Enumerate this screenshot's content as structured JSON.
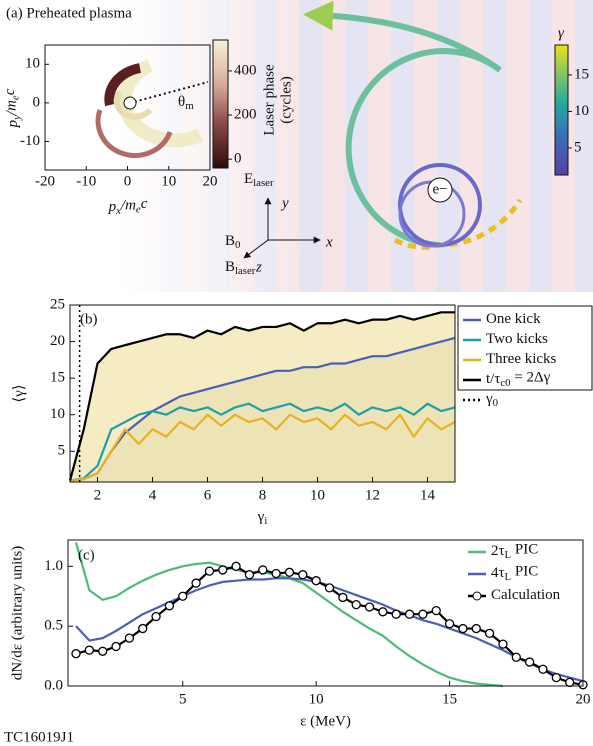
{
  "panel_a": {
    "label": "(a) Preheated plasma",
    "inset": {
      "xlabel": [
        "p",
        "x",
        "/m",
        "e",
        "c"
      ],
      "ylabel": [
        "p",
        "y",
        "/m",
        "e",
        "c"
      ],
      "xlim": [
        -20,
        20
      ],
      "ylim": [
        -17.4,
        15
      ],
      "xticks": [
        -20,
        -10,
        0,
        10,
        20
      ],
      "yticks": [
        -10,
        0,
        10
      ],
      "angle_label": [
        "θ",
        "m"
      ],
      "colorbar": {
        "label_lines": [
          "Laser phase",
          "(cycles)"
        ],
        "lim": [
          -40,
          540
        ],
        "ticks": [
          0,
          200,
          400
        ]
      }
    },
    "trajectory": {
      "particle_label": "e−",
      "colorbar": {
        "label": "γ",
        "lim": [
          1.3,
          19.1
        ],
        "ticks": [
          5,
          10,
          15
        ]
      }
    },
    "axes": {
      "E": [
        "E",
        "laser"
      ],
      "y": "y",
      "x": "x",
      "z": "z",
      "B0": [
        "B",
        "0"
      ],
      "Blaser": [
        "B",
        "laser"
      ]
    }
  },
  "chart_data": [
    {
      "type": "line",
      "panel_label": "(b)",
      "xlabel": [
        "γ",
        "i"
      ],
      "ylabel": "⟨γ⟩",
      "xlim": [
        1,
        15
      ],
      "ylim": [
        0.8,
        25
      ],
      "xticks": [
        2,
        4,
        6,
        8,
        10,
        12,
        14
      ],
      "yticks": [
        5,
        10,
        15,
        20,
        25
      ],
      "legend": "right-outside",
      "x": [
        1,
        1.5,
        2,
        2.5,
        3,
        3.5,
        4,
        4.5,
        5,
        5.5,
        6,
        6.5,
        7,
        7.5,
        8,
        8.5,
        9,
        9.5,
        10,
        10.5,
        11,
        11.5,
        12,
        12.5,
        13,
        13.5,
        14,
        14.5,
        15
      ],
      "series": [
        {
          "name": [
            "One kick"
          ],
          "color": "#4a5fb5",
          "fill": "#c9d2b4",
          "values": [
            1,
            1.2,
            2,
            5,
            7.5,
            9,
            10.5,
            11.5,
            12.5,
            13,
            13.5,
            14,
            14.5,
            15,
            15.5,
            16,
            16,
            16.5,
            16.5,
            17,
            17,
            17.5,
            18,
            18,
            18.5,
            19,
            19.5,
            20,
            20.5
          ]
        },
        {
          "name": [
            "Two kicks"
          ],
          "color": "#1b9fa8",
          "values": [
            1,
            1.3,
            3,
            8,
            9,
            10,
            10.5,
            10,
            11,
            10.5,
            11,
            10,
            11,
            11.5,
            10.5,
            11,
            11.5,
            10.5,
            11,
            10.5,
            11.5,
            10,
            11,
            10.5,
            11,
            10,
            11.5,
            10.5,
            11
          ]
        },
        {
          "name": [
            "Three kicks"
          ],
          "color": "#e6b124",
          "values": [
            1,
            1.2,
            2,
            5,
            8,
            6,
            8,
            7,
            9,
            8,
            10,
            8.5,
            10,
            9,
            9.5,
            8,
            10,
            9,
            9.5,
            8,
            10,
            8.5,
            9,
            8,
            10,
            7,
            9.5,
            8,
            9
          ]
        },
        {
          "name": [
            "t/τ",
            "c0",
            " = 2Δγ"
          ],
          "color": "#000000",
          "fill": "#f3e6b0",
          "values": [
            1,
            8,
            17,
            19,
            19.5,
            20,
            20.5,
            21,
            21,
            20.5,
            21.5,
            21,
            22,
            21.5,
            22,
            22,
            22.5,
            21.5,
            22.5,
            22.5,
            23,
            22.5,
            23,
            23,
            23.5,
            23,
            23.5,
            24,
            24
          ]
        },
        {
          "name": [
            "γ",
            "0"
          ],
          "color": "#000000",
          "dash": "dotted",
          "x_value": 1.35
        }
      ]
    },
    {
      "type": "line",
      "panel_label": "(c)",
      "xlabel": "ε (MeV)",
      "ylabel": "dN/dε (arbitrary units)",
      "xlim": [
        0.7,
        20
      ],
      "ylim": [
        0,
        1.22
      ],
      "xticks": [
        5,
        10,
        15,
        20
      ],
      "yticks": [
        {
          "value": 0,
          "label": "0.0"
        },
        {
          "value": 0.5,
          "label": "0.5"
        },
        {
          "value": 1,
          "label": "1.0"
        }
      ],
      "legend": "upper right",
      "x": [
        1,
        1.5,
        2,
        2.5,
        3,
        3.5,
        4,
        4.5,
        5,
        5.5,
        6,
        6.5,
        7,
        7.5,
        8,
        8.5,
        9,
        9.5,
        10,
        10.5,
        11,
        11.5,
        12,
        12.5,
        13,
        13.5,
        14,
        14.5,
        15,
        15.5,
        16,
        16.5,
        17,
        17.5,
        18,
        18.5,
        19,
        19.5,
        20
      ],
      "series": [
        {
          "name": [
            "2τ",
            "L",
            " PIC"
          ],
          "color": "#4cbb78",
          "values": [
            1.2,
            0.8,
            0.72,
            0.75,
            0.82,
            0.88,
            0.93,
            0.97,
            1.0,
            1.02,
            1.03,
            1.0,
            0.97,
            0.95,
            0.95,
            0.93,
            0.9,
            0.86,
            0.78,
            0.7,
            0.62,
            0.55,
            0.48,
            0.42,
            0.33,
            0.25,
            0.18,
            0.12,
            0.07,
            0.04,
            0.02,
            0.01,
            0,
            null,
            null,
            null,
            null,
            null,
            null
          ]
        },
        {
          "name": [
            "4τ",
            "L",
            " PIC"
          ],
          "color": "#4a5fb5",
          "values": [
            0.5,
            0.38,
            0.4,
            0.46,
            0.53,
            0.6,
            0.65,
            0.7,
            0.75,
            0.8,
            0.84,
            0.87,
            0.88,
            0.89,
            0.89,
            0.9,
            0.9,
            0.89,
            0.87,
            0.84,
            0.8,
            0.76,
            0.72,
            0.68,
            0.63,
            0.59,
            0.55,
            0.52,
            0.48,
            0.44,
            0.4,
            0.35,
            0.3,
            0.24,
            0.19,
            0.14,
            0.1,
            0.07,
            0.04
          ]
        },
        {
          "name": [
            "Calculation"
          ],
          "color": "#000000",
          "marker": "circle",
          "values": [
            0.27,
            0.3,
            0.29,
            0.33,
            0.4,
            0.48,
            0.58,
            0.67,
            0.75,
            0.86,
            0.96,
            0.97,
            1.0,
            0.93,
            0.97,
            0.94,
            0.95,
            0.93,
            0.88,
            0.82,
            0.74,
            0.68,
            0.66,
            0.62,
            0.6,
            0.6,
            0.6,
            0.63,
            0.52,
            0.48,
            0.48,
            0.44,
            0.35,
            0.24,
            0.2,
            0.14,
            0.07,
            0.03,
            0.01
          ]
        }
      ]
    }
  ],
  "footer": "TC16019J1"
}
